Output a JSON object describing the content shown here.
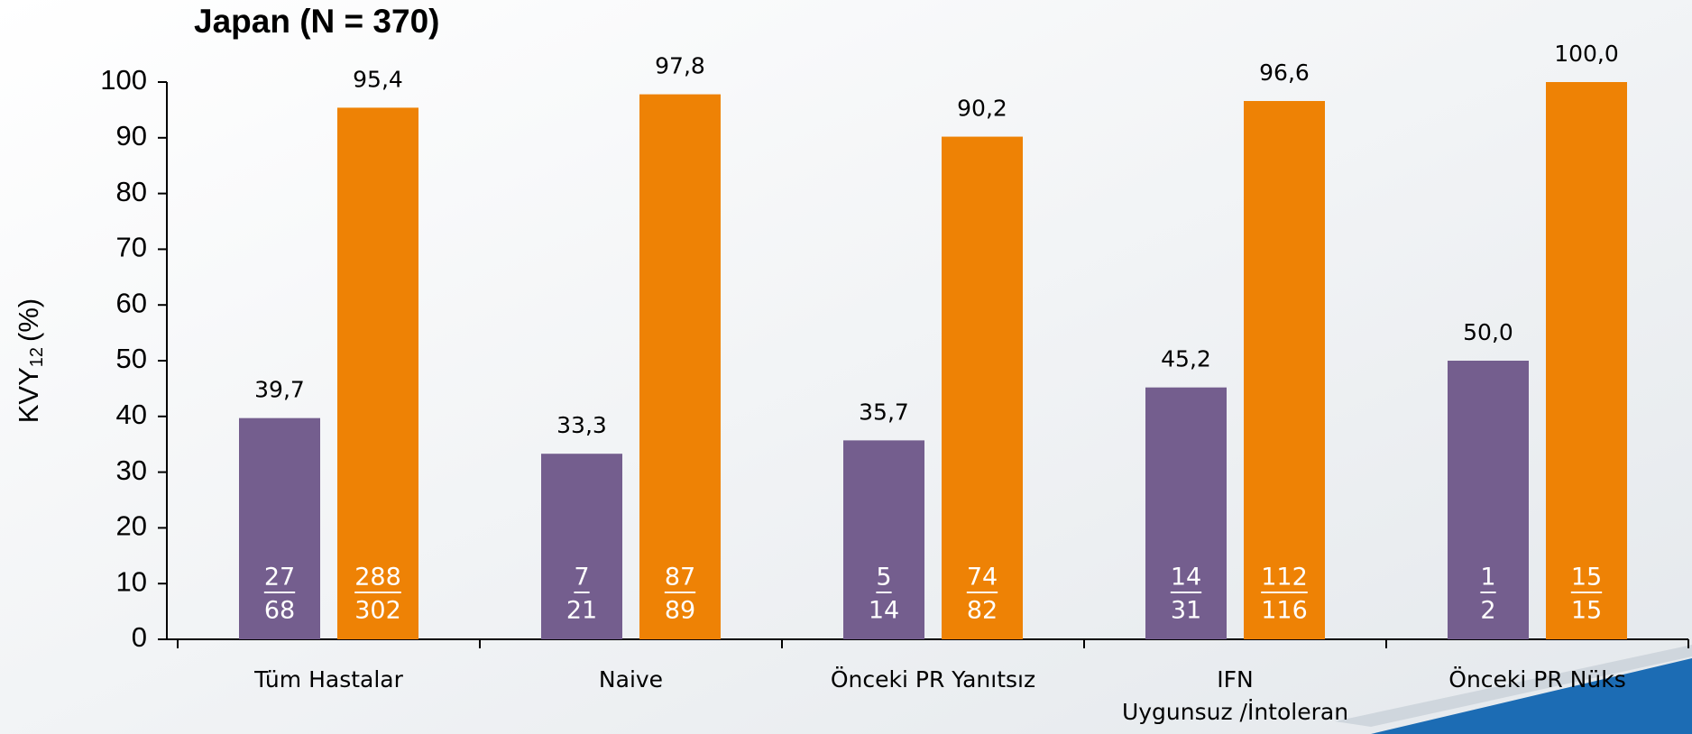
{
  "chart_data": {
    "type": "bar",
    "title": "Japan (N = 370)",
    "y_label": {
      "main": "KVY",
      "sub": "12",
      "unit": "(%)"
    },
    "categories": [
      "Tüm Hastalar",
      "Naive",
      "Önceki PR Yanıtsız",
      [
        "IFN",
        "Uygunsuz /İntoleran"
      ],
      "Önceki PR Nüks"
    ],
    "series": [
      {
        "color": "#745e8e",
        "values": [
          39.7,
          33.3,
          35.7,
          45.2,
          50.0
        ],
        "value_labels": [
          "39,7",
          "33,3",
          "35,7",
          "45,2",
          "50,0"
        ],
        "numerators": [
          27,
          7,
          5,
          14,
          1
        ],
        "denominators": [
          68,
          21,
          14,
          31,
          2
        ]
      },
      {
        "color": "#ee8205",
        "values": [
          95.4,
          97.8,
          90.2,
          96.6,
          100.0
        ],
        "value_labels": [
          "95,4",
          "97,8",
          "90,2",
          "96,6",
          "100,0"
        ],
        "numerators": [
          288,
          87,
          74,
          112,
          15
        ],
        "denominators": [
          302,
          89,
          82,
          116,
          15
        ]
      }
    ],
    "ylim": [
      0,
      100
    ],
    "yticks": [
      0,
      10,
      20,
      30,
      40,
      50,
      60,
      70,
      80,
      90,
      100
    ],
    "grid": false
  }
}
